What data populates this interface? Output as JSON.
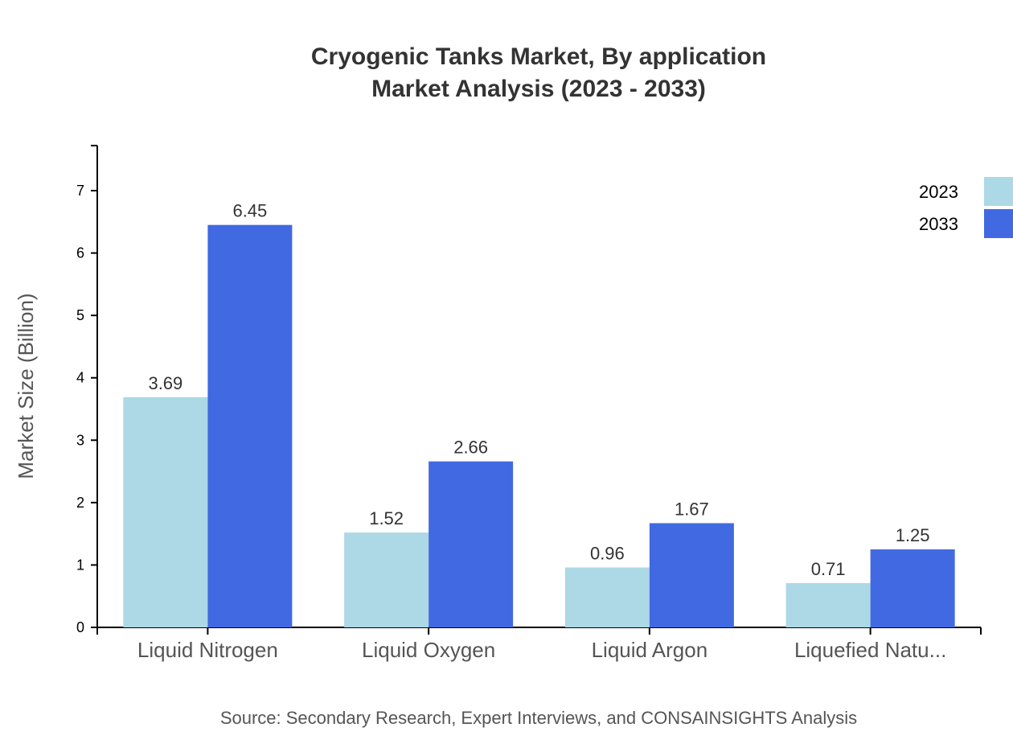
{
  "chart_data": {
    "type": "bar",
    "title": "Cryogenic Tanks Market, By application",
    "subtitle": "Market Analysis (2023 - 2033)",
    "xlabel": "",
    "ylabel": "Market Size (Billion)",
    "ylim": [
      0,
      7.7
    ],
    "yticks": [
      0,
      1,
      2,
      3,
      4,
      5,
      6,
      7
    ],
    "categories": [
      "Liquid Nitrogen",
      "Liquid Oxygen",
      "Liquid Argon",
      "Liquefied Natu..."
    ],
    "series": [
      {
        "name": "2023",
        "color": "#ADD8E6",
        "values": [
          3.69,
          1.52,
          0.96,
          0.71
        ]
      },
      {
        "name": "2033",
        "color": "#4169E1",
        "values": [
          6.45,
          2.66,
          1.67,
          1.25
        ]
      }
    ],
    "grid": false,
    "legend": "top-right",
    "source": "Source: Secondary Research, Expert Interviews, and CONSAINSIGHTS Analysis"
  }
}
